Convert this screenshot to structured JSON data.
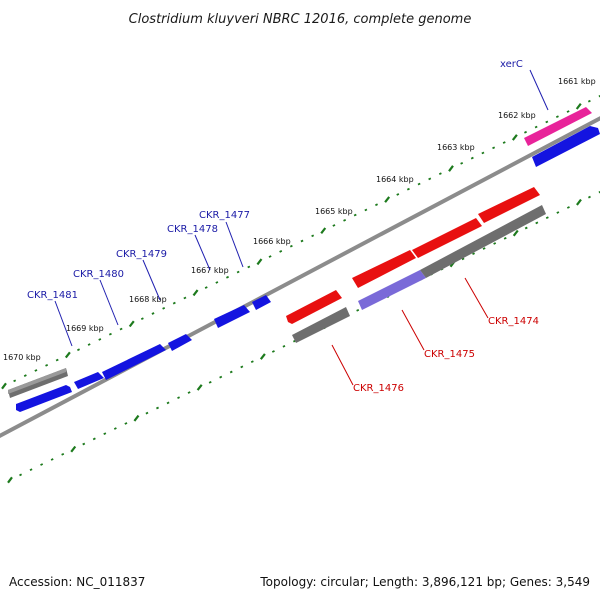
{
  "title": "Clostridium kluyveri NBRC 12016, complete genome",
  "footer": {
    "accession": "Accession: NC_011837",
    "summary": "Topology: circular; Length: 3,896,121 bp; Genes: 3,549"
  },
  "ticks": [
    "1661 kbp",
    "1662 kbp",
    "1663 kbp",
    "1664 kbp",
    "1665 kbp",
    "1666 kbp",
    "1667 kbp",
    "1668 kbp",
    "1669 kbp",
    "1670 kbp"
  ],
  "genes_forward": [
    {
      "name": "xerC",
      "color": "#e8239a"
    },
    {
      "name": "CKR_1477",
      "color": "#1414e0"
    },
    {
      "name": "CKR_1478",
      "color": "#1414e0"
    },
    {
      "name": "CKR_1479",
      "color": "#1414e0"
    },
    {
      "name": "CKR_1480",
      "color": "#1414e0"
    },
    {
      "name": "CKR_1481",
      "color": "#1414e0"
    }
  ],
  "genes_reverse": [
    {
      "name": "CKR_1474",
      "color": "#e81010"
    },
    {
      "name": "CKR_1475",
      "color": "#e81010"
    },
    {
      "name": "CKR_1476",
      "color": "#e81010"
    }
  ],
  "colors": {
    "backbone": "#8c8c8c",
    "tick": "#1d7a1d",
    "forward_cds": "#1414e0",
    "reverse_cds": "#e81010",
    "gene_track": "#6e6e6e",
    "highlight_cds": "#7a6ad8"
  }
}
